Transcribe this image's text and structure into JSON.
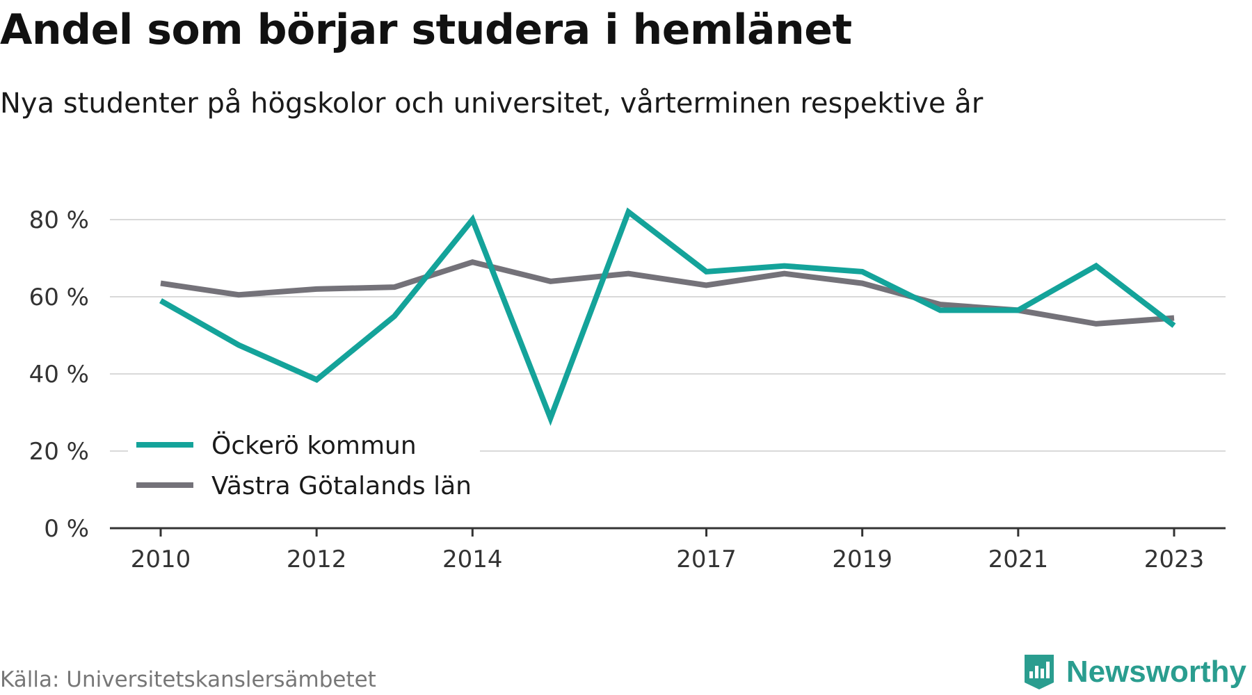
{
  "header": {
    "title": "Andel som börjar studera i hemlänet",
    "subtitle": "Nya studenter på högskolor och universitet, vårterminen respektive år"
  },
  "footer": {
    "source": "Källa: Universitetskanslersämbetet",
    "brand": "Newsworthy",
    "brand_icon": "bar-chart-badge-icon"
  },
  "chart_data": {
    "type": "line",
    "title": "Andel som börjar studera i hemlänet",
    "subtitle": "Nya studenter på högskolor och universitet, vårterminen respektive år",
    "xlabel": "",
    "ylabel": "",
    "x": [
      2010,
      2011,
      2012,
      2013,
      2014,
      2015,
      2016,
      2017,
      2018,
      2019,
      2020,
      2021,
      2022,
      2023
    ],
    "x_tick_labels": [
      "2010",
      "2012",
      "2014",
      "2017",
      "2019",
      "2021",
      "2023"
    ],
    "y_ticks": [
      {
        "value": 0,
        "label": "0 %"
      },
      {
        "value": 20,
        "label": "20 %"
      },
      {
        "value": 40,
        "label": "40 %"
      },
      {
        "value": 60,
        "label": "60 %"
      },
      {
        "value": 80,
        "label": "80 %"
      }
    ],
    "ylim": [
      0,
      80
    ],
    "grid": true,
    "legend_position": "bottom-left",
    "series": [
      {
        "name": "Öckerö kommun",
        "color": "#14a39a",
        "values": [
          59,
          47.5,
          38.5,
          55,
          80,
          28.5,
          82,
          66.5,
          68,
          66.5,
          56.5,
          56.5,
          68,
          52.5
        ]
      },
      {
        "name": "Västra Götalands län",
        "color": "#747279",
        "values": [
          63.5,
          60.5,
          62,
          62.5,
          69,
          64,
          66,
          63,
          66,
          63.5,
          58,
          56.5,
          53,
          54.5
        ]
      }
    ]
  }
}
